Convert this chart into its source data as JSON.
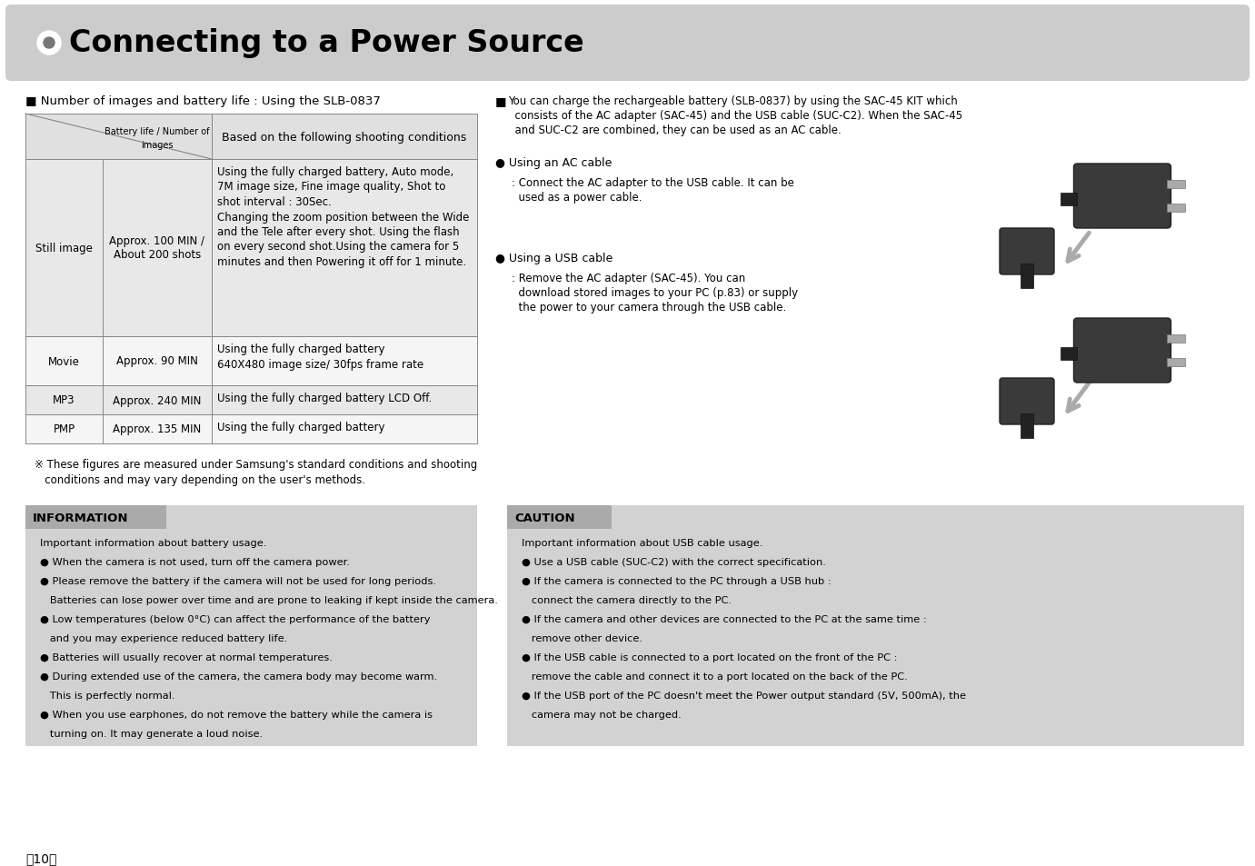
{
  "title": "Connecting to a Power Source",
  "page_bg": "#ffffff",
  "title_bg": "#cccccc",
  "top_note": "■ Number of images and battery life : Using the SLB-0837",
  "table_col2_hdr1": "Battery life / Number of",
  "table_col2_hdr2": "images",
  "table_col3_hdr": "Based on the following shooting conditions",
  "table_rows": [
    {
      "col1": "Still image",
      "col2": "Approx. 100 MIN /\nAbout 200 shots",
      "col3": "Using the fully charged battery, Auto mode,\n7M image size, Fine image quality, Shot to\nshot interval : 30Sec.\nChanging the zoom position between the Wide\nand the Tele after every shot. Using the flash\non every second shot.Using the camera for 5\nminutes and then Powering it off for 1 minute."
    },
    {
      "col1": "Movie",
      "col2": "Approx. 90 MIN",
      "col3": "Using the fully charged battery\n640X480 image size/ 30fps frame rate"
    },
    {
      "col1": "MP3",
      "col2": "Approx. 240 MIN",
      "col3": "Using the fully charged battery LCD Off."
    },
    {
      "col1": "PMP",
      "col2": "Approx. 135 MIN",
      "col3": "Using the fully charged battery"
    }
  ],
  "footnote1": "※ These figures are measured under Samsung's standard conditions and shooting",
  "footnote2": "   conditions and may vary depending on the user's methods.",
  "right_bullet": "■",
  "right_para_lines": [
    "You can charge the rechargeable battery (SLB-0837) by using the SAC-45 KIT which",
    "  consists of the AC adapter (SAC-45) and the USB cable (SUC-C2). When the SAC-45",
    "  and SUC-C2 are combined, they can be used as an AC cable."
  ],
  "ac_title": "● Using an AC cable",
  "ac_lines": [
    ": Connect the AC adapter to the USB cable. It can be",
    "  used as a power cable."
  ],
  "usb_title": "● Using a USB cable",
  "usb_lines": [
    ": Remove the AC adapter (SAC-45). You can",
    "  download stored images to your PC (p.83) or supply",
    "  the power to your camera through the USB cable."
  ],
  "info_title": "INFORMATION",
  "info_bg": "#d2d2d2",
  "info_header_bg": "#aaaaaa",
  "info_lines": [
    "Important information about battery usage.",
    "● When the camera is not used, turn off the camera power.",
    "● Please remove the battery if the camera will not be used for long periods.",
    "   Batteries can lose power over time and are prone to leaking if kept inside the camera.",
    "● Low temperatures (below 0°C) can affect the performance of the battery",
    "   and you may experience reduced battery life.",
    "● Batteries will usually recover at normal temperatures.",
    "● During extended use of the camera, the camera body may become warm.",
    "   This is perfectly normal.",
    "● When you use earphones, do not remove the battery while the camera is",
    "   turning on. It may generate a loud noise."
  ],
  "caution_title": "CAUTION",
  "caution_bg": "#d2d2d2",
  "caution_header_bg": "#aaaaaa",
  "caution_lines": [
    "Important information about USB cable usage.",
    "● Use a USB cable (SUC-C2) with the correct specification.",
    "● If the camera is connected to the PC through a USB hub :",
    "   connect the camera directly to the PC.",
    "● If the camera and other devices are connected to the PC at the same time :",
    "   remove other device.",
    "● If the USB cable is connected to a port located on the front of the PC :",
    "   remove the cable and connect it to a port located on the back of the PC.",
    "● If the USB port of the PC doesn't meet the Power output standard (5V, 500mA), the",
    "   camera may not be charged."
  ],
  "page_number": "【10】"
}
